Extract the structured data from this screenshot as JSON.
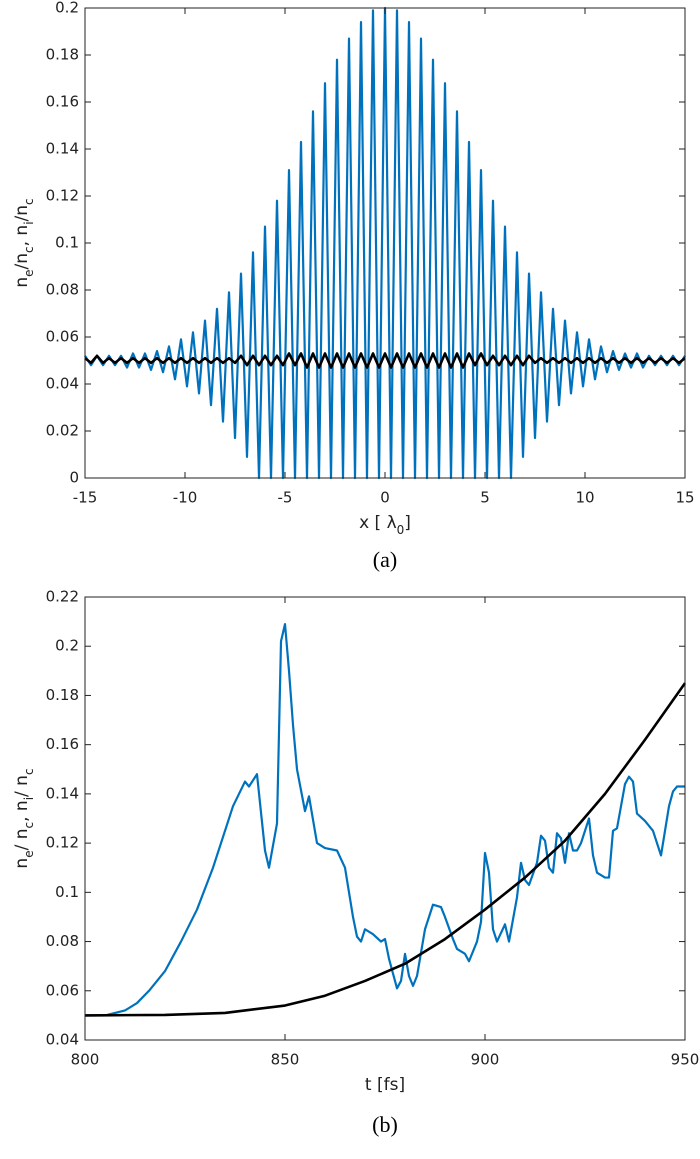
{
  "chart_data": [
    {
      "type": "line",
      "caption": "(a)",
      "xlabel": [
        "x [ λ",
        "0",
        "]"
      ],
      "ylabel": [
        "n",
        "e",
        "/n",
        "c",
        ", n",
        "i",
        "/n",
        "c"
      ],
      "xlim": [
        -15,
        15
      ],
      "xticks": [
        -15,
        -10,
        -5,
        0,
        5,
        10,
        15
      ],
      "ylim": [
        0,
        0.2
      ],
      "yticks": [
        0,
        0.02,
        0.04,
        0.06,
        0.08,
        0.1,
        0.12,
        0.14,
        0.16,
        0.18,
        0.2
      ],
      "x": [
        -15,
        -14.7,
        -14.4,
        -14.1,
        -13.8,
        -13.5,
        -13.2,
        -12.9,
        -12.6,
        -12.3,
        -12,
        -11.7,
        -11.4,
        -11.1,
        -10.8,
        -10.5,
        -10.2,
        -9.9,
        -9.6,
        -9.3,
        -9,
        -8.7,
        -8.4,
        -8.1,
        -7.8,
        -7.5,
        -7.2,
        -6.9,
        -6.6,
        -6.3,
        -6,
        -5.7,
        -5.4,
        -5.1,
        -4.8,
        -4.5,
        -4.2,
        -3.9,
        -3.6,
        -3.3,
        -3,
        -2.7,
        -2.4,
        -2.1,
        -1.8,
        -1.5,
        -1.2,
        -0.9,
        -0.6,
        -0.3,
        0,
        0.3,
        0.6,
        0.9,
        1.2,
        1.5,
        1.8,
        2.1,
        2.4,
        2.7,
        3,
        3.3,
        3.6,
        3.9,
        4.2,
        4.5,
        4.8,
        5.1,
        5.4,
        5.7,
        6,
        6.3,
        6.6,
        6.9,
        7.2,
        7.5,
        7.8,
        8.1,
        8.4,
        8.7,
        9,
        9.3,
        9.6,
        9.9,
        10.2,
        10.5,
        10.8,
        11.1,
        11.4,
        11.7,
        12,
        12.3,
        12.6,
        12.9,
        13.2,
        13.5,
        13.8,
        14.1,
        14.4,
        14.7,
        15
      ],
      "series": [
        {
          "color": "#0072bd",
          "values": [
            0.052,
            0.048,
            0.052,
            0.048,
            0.052,
            0.048,
            0.052,
            0.047,
            0.053,
            0.047,
            0.053,
            0.046,
            0.054,
            0.045,
            0.056,
            0.042,
            0.059,
            0.039,
            0.062,
            0.036,
            0.067,
            0.031,
            0.072,
            0.024,
            0.079,
            0.017,
            0.087,
            0.009,
            0.096,
            0,
            0.107,
            0,
            0.118,
            0,
            0.131,
            0,
            0.143,
            0,
            0.156,
            0,
            0.168,
            0,
            0.178,
            0,
            0.187,
            0,
            0.194,
            0,
            0.199,
            0,
            0.2,
            0,
            0.199,
            0,
            0.194,
            0,
            0.187,
            0,
            0.178,
            0,
            0.168,
            0,
            0.156,
            0,
            0.143,
            0,
            0.131,
            0,
            0.118,
            0,
            0.107,
            0,
            0.096,
            0.009,
            0.087,
            0.017,
            0.079,
            0.024,
            0.072,
            0.031,
            0.067,
            0.036,
            0.062,
            0.039,
            0.059,
            0.042,
            0.056,
            0.045,
            0.054,
            0.046,
            0.053,
            0.047,
            0.053,
            0.047,
            0.052,
            0.048,
            0.052,
            0.048,
            0.052,
            0.048,
            0.052
          ]
        },
        {
          "color": "#000000",
          "values": [
            0.051,
            0.049,
            0.052,
            0.049,
            0.051,
            0.049,
            0.051,
            0.049,
            0.051,
            0.049,
            0.051,
            0.049,
            0.051,
            0.049,
            0.051,
            0.049,
            0.051,
            0.049,
            0.051,
            0.049,
            0.051,
            0.049,
            0.051,
            0.049,
            0.051,
            0.049,
            0.052,
            0.048,
            0.052,
            0.048,
            0.052,
            0.048,
            0.052,
            0.048,
            0.053,
            0.048,
            0.053,
            0.047,
            0.053,
            0.047,
            0.053,
            0.047,
            0.053,
            0.047,
            0.053,
            0.047,
            0.053,
            0.047,
            0.053,
            0.047,
            0.053,
            0.047,
            0.053,
            0.047,
            0.053,
            0.047,
            0.053,
            0.047,
            0.053,
            0.047,
            0.053,
            0.047,
            0.053,
            0.047,
            0.053,
            0.048,
            0.053,
            0.048,
            0.052,
            0.048,
            0.052,
            0.048,
            0.052,
            0.048,
            0.052,
            0.049,
            0.051,
            0.049,
            0.051,
            0.049,
            0.051,
            0.049,
            0.051,
            0.049,
            0.051,
            0.049,
            0.051,
            0.049,
            0.051,
            0.049,
            0.051,
            0.049,
            0.051,
            0.049,
            0.051,
            0.049,
            0.051,
            0.049,
            0.051,
            0.049,
            0.051
          ]
        }
      ]
    },
    {
      "type": "line",
      "caption": "(b)",
      "xlabel": [
        "t [fs]"
      ],
      "ylabel": [
        "n",
        "e",
        "/ n",
        "c",
        ",   n",
        "i",
        "/ n",
        "c"
      ],
      "xlim": [
        800,
        950
      ],
      "xticks": [
        800,
        850,
        900,
        950
      ],
      "ylim": [
        0.04,
        0.22
      ],
      "yticks": [
        0.04,
        0.06,
        0.08,
        0.1,
        0.12,
        0.14,
        0.16,
        0.18,
        0.2,
        0.22
      ],
      "series": [
        {
          "color": "#0072bd",
          "x": [
            800,
            805,
            810,
            813,
            816,
            820,
            824,
            828,
            832,
            835,
            837,
            840,
            841,
            843,
            845,
            846,
            848,
            849,
            850,
            851,
            852,
            853,
            855,
            856,
            858,
            860,
            863,
            865,
            867,
            868,
            869,
            870,
            872,
            874,
            875,
            876,
            878,
            879,
            880,
            881,
            882,
            883,
            885,
            887,
            889,
            890,
            892,
            893,
            895,
            896,
            898,
            899,
            900,
            901,
            902,
            903,
            905,
            906,
            908,
            909,
            910,
            911,
            913,
            914,
            915,
            916,
            917,
            918,
            919,
            920,
            921,
            922,
            923,
            924,
            926,
            927,
            928,
            930,
            931,
            932,
            933,
            935,
            936,
            937,
            938,
            940,
            942,
            944,
            946,
            947,
            948,
            950
          ],
          "values": [
            0.05,
            0.05,
            0.052,
            0.055,
            0.06,
            0.068,
            0.08,
            0.093,
            0.11,
            0.125,
            0.135,
            0.145,
            0.143,
            0.148,
            0.117,
            0.11,
            0.128,
            0.202,
            0.209,
            0.19,
            0.168,
            0.15,
            0.133,
            0.139,
            0.12,
            0.118,
            0.117,
            0.11,
            0.09,
            0.082,
            0.08,
            0.085,
            0.083,
            0.08,
            0.081,
            0.073,
            0.061,
            0.064,
            0.075,
            0.066,
            0.062,
            0.066,
            0.085,
            0.095,
            0.094,
            0.09,
            0.081,
            0.077,
            0.075,
            0.072,
            0.08,
            0.088,
            0.116,
            0.108,
            0.085,
            0.08,
            0.087,
            0.08,
            0.098,
            0.112,
            0.105,
            0.103,
            0.112,
            0.123,
            0.121,
            0.11,
            0.108,
            0.124,
            0.122,
            0.112,
            0.124,
            0.117,
            0.117,
            0.12,
            0.13,
            0.115,
            0.108,
            0.106,
            0.106,
            0.125,
            0.126,
            0.144,
            0.147,
            0.145,
            0.132,
            0.129,
            0.125,
            0.115,
            0.135,
            0.141,
            0.143,
            0.143
          ]
        },
        {
          "color": "#000000",
          "x": [
            800,
            820,
            835,
            840,
            850,
            860,
            870,
            880,
            890,
            900,
            910,
            920,
            930,
            940,
            950
          ],
          "values": [
            0.05,
            0.0502,
            0.051,
            0.052,
            0.054,
            0.058,
            0.064,
            0.071,
            0.081,
            0.093,
            0.106,
            0.121,
            0.14,
            0.162,
            0.185
          ]
        }
      ]
    }
  ]
}
